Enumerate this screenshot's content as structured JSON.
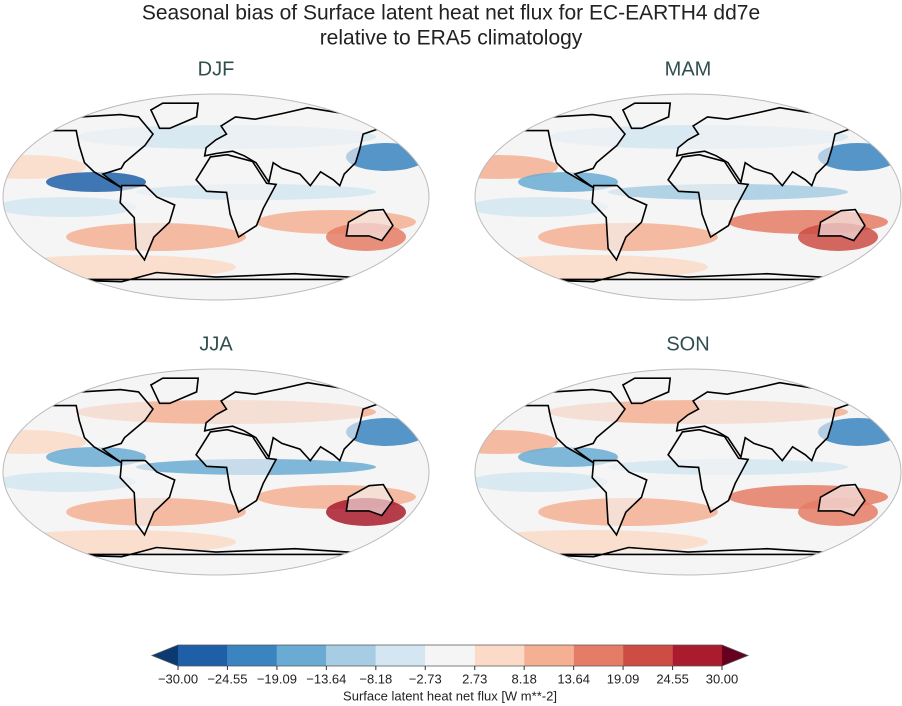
{
  "chart_data": {
    "type": "map",
    "title": "Seasonal bias of Surface latent heat net flux for EC-EARTH4 dd7e",
    "subtitle": "relative to ERA5 climatology",
    "panels": [
      "DJF",
      "MAM",
      "JJA",
      "SON"
    ],
    "colorbar": {
      "label": "Surface latent heat net flux [W m**-2]",
      "lim": [
        -30,
        30
      ],
      "ticks": [
        {
          "value": -30,
          "label": "−30.00"
        },
        {
          "value": -24.55,
          "label": "−24.55"
        },
        {
          "value": -19.09,
          "label": "−19.09"
        },
        {
          "value": -13.64,
          "label": "−13.64"
        },
        {
          "value": -8.18,
          "label": "−8.18"
        },
        {
          "value": -2.73,
          "label": "−2.73"
        },
        {
          "value": 2.73,
          "label": "2.73"
        },
        {
          "value": 8.18,
          "label": "8.18"
        },
        {
          "value": 13.64,
          "label": "13.64"
        },
        {
          "value": 19.09,
          "label": "19.09"
        },
        {
          "value": 24.55,
          "label": "24.55"
        },
        {
          "value": 30,
          "label": "30.00"
        }
      ],
      "colors": [
        "#1f5fa8",
        "#3a84c0",
        "#6aabd3",
        "#a6cde3",
        "#d3e6f1",
        "#f5f5f5",
        "#fbdac7",
        "#f5b093",
        "#e57d66",
        "#cd4c44",
        "#a91b2d"
      ],
      "under_color": "#0b3a73",
      "over_color": "#67001f"
    }
  }
}
